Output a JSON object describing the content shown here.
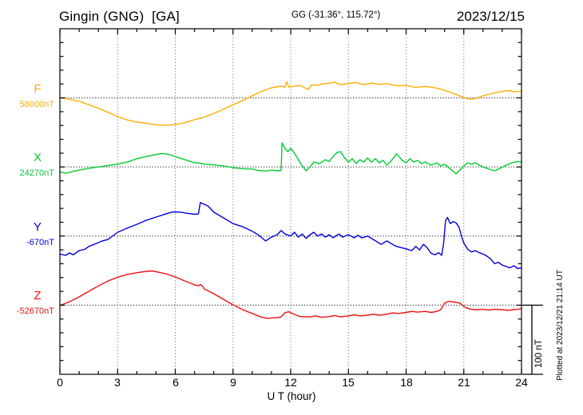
{
  "header": {
    "station_title": "Gingin (GNG)  [GA]",
    "coordinates": "GG (-31.36°, 115.72°)",
    "date": "2023/12/15"
  },
  "x_axis": {
    "label": "U T (hour)",
    "tick_labels": [
      "0",
      "3",
      "6",
      "9",
      "12",
      "15",
      "18",
      "21",
      "24"
    ],
    "hours_start": 0,
    "hours_end": 24
  },
  "scale_bar": {
    "label": "100 nT",
    "span_nT": 100
  },
  "annotations": {
    "plotted_at": "Plotted at 2023/12/21 21:14 UT"
  },
  "chart_data": {
    "type": "line",
    "title": "Magnetogram Gingin (GNG) [GA] 2023/12/15",
    "x_unit": "UT hour",
    "x_range": [
      0,
      24
    ],
    "grid": true,
    "x_grid_step_hours": 3,
    "y_tick_step_nT": 20,
    "scale_nT_per_division": 100,
    "series": [
      {
        "name": "F",
        "label": "F",
        "baseline_label": "58000nT",
        "baseline_nT": 58000,
        "color": "#FFAE00",
        "points_hour_deltaNT": [
          [
            0,
            0
          ],
          [
            0.5,
            -2
          ],
          [
            1,
            -5
          ],
          [
            1.5,
            -10
          ],
          [
            2,
            -15
          ],
          [
            2.5,
            -21
          ],
          [
            3,
            -27
          ],
          [
            3.5,
            -32
          ],
          [
            4,
            -35
          ],
          [
            4.5,
            -37
          ],
          [
            5,
            -39
          ],
          [
            5.5,
            -40
          ],
          [
            6,
            -38.5
          ],
          [
            6.5,
            -36
          ],
          [
            7,
            -31.5
          ],
          [
            7.3,
            -29.5
          ],
          [
            7.5,
            -28
          ],
          [
            8,
            -22.5
          ],
          [
            8.5,
            -16.5
          ],
          [
            9,
            -10
          ],
          [
            9.5,
            -4
          ],
          [
            10,
            3
          ],
          [
            10.5,
            9.5
          ],
          [
            11,
            14.5
          ],
          [
            11.5,
            17
          ],
          [
            11.7,
            15.5
          ],
          [
            11.8,
            23
          ],
          [
            11.9,
            15.5
          ],
          [
            12.2,
            17
          ],
          [
            12.5,
            18
          ],
          [
            12.9,
            12
          ],
          [
            13.1,
            19
          ],
          [
            13.4,
            18
          ],
          [
            13.7,
            20.5
          ],
          [
            14,
            21
          ],
          [
            14.3,
            22.5
          ],
          [
            14.6,
            19
          ],
          [
            15,
            21
          ],
          [
            15.4,
            22
          ],
          [
            15.8,
            19
          ],
          [
            16.2,
            21.5
          ],
          [
            16.6,
            19.5
          ],
          [
            17,
            20.5
          ],
          [
            17.5,
            17.5
          ],
          [
            18,
            18
          ],
          [
            18.5,
            15
          ],
          [
            19,
            16.5
          ],
          [
            19.5,
            14.5
          ],
          [
            20,
            11
          ],
          [
            20.5,
            6
          ],
          [
            21,
            0.5
          ],
          [
            21.3,
            -2
          ],
          [
            21.6,
            -1
          ],
          [
            22,
            3
          ],
          [
            22.5,
            6.5
          ],
          [
            23,
            9.5
          ],
          [
            23.3,
            10.5
          ],
          [
            23.6,
            9
          ],
          [
            24,
            9.5
          ]
        ]
      },
      {
        "name": "X",
        "label": "X",
        "baseline_label": "24270nT",
        "baseline_nT": 24270,
        "color": "#00CC33",
        "points_hour_deltaNT": [
          [
            0,
            -7
          ],
          [
            0.3,
            -9
          ],
          [
            0.6,
            -7
          ],
          [
            1,
            -4.5
          ],
          [
            1.5,
            -2
          ],
          [
            2,
            0
          ],
          [
            2.5,
            2
          ],
          [
            3,
            4
          ],
          [
            3.5,
            7
          ],
          [
            4,
            12
          ],
          [
            4.5,
            15
          ],
          [
            5,
            18
          ],
          [
            5.3,
            19.5
          ],
          [
            5.7,
            18
          ],
          [
            6,
            15
          ],
          [
            6.5,
            10.5
          ],
          [
            7,
            6
          ],
          [
            7.3,
            5.5
          ],
          [
            7.5,
            4
          ],
          [
            8,
            3
          ],
          [
            8.5,
            1.5
          ],
          [
            9,
            -1
          ],
          [
            9.5,
            -2.5
          ],
          [
            10,
            -3
          ],
          [
            10.3,
            -5
          ],
          [
            10.7,
            -6
          ],
          [
            11,
            -4.5
          ],
          [
            11.3,
            -5.5
          ],
          [
            11.5,
            -5
          ],
          [
            11.55,
            35
          ],
          [
            11.7,
            27
          ],
          [
            11.85,
            22
          ],
          [
            12,
            27
          ],
          [
            12.2,
            20
          ],
          [
            12.4,
            10.5
          ],
          [
            12.6,
            1.5
          ],
          [
            12.8,
            -5.5
          ],
          [
            13,
            0
          ],
          [
            13.2,
            7
          ],
          [
            13.5,
            5
          ],
          [
            13.8,
            10.5
          ],
          [
            14,
            8
          ],
          [
            14.2,
            15
          ],
          [
            14.4,
            21
          ],
          [
            14.6,
            22
          ],
          [
            14.8,
            13
          ],
          [
            15,
            7
          ],
          [
            15.2,
            12
          ],
          [
            15.4,
            5
          ],
          [
            15.6,
            10.5
          ],
          [
            15.8,
            7
          ],
          [
            16,
            13
          ],
          [
            16.2,
            7
          ],
          [
            16.4,
            12
          ],
          [
            16.6,
            6
          ],
          [
            16.8,
            9.5
          ],
          [
            17,
            2.5
          ],
          [
            17.2,
            8
          ],
          [
            17.5,
            19
          ],
          [
            17.8,
            9.5
          ],
          [
            18,
            6
          ],
          [
            18.2,
            12
          ],
          [
            18.4,
            7
          ],
          [
            18.6,
            9.5
          ],
          [
            18.8,
            5
          ],
          [
            19,
            7
          ],
          [
            19.3,
            2.5
          ],
          [
            19.6,
            6
          ],
          [
            19.8,
            1.5
          ],
          [
            20,
            4
          ],
          [
            20.3,
            -3
          ],
          [
            20.6,
            -10
          ],
          [
            20.8,
            -4.5
          ],
          [
            21,
            1.5
          ],
          [
            21.2,
            6
          ],
          [
            21.4,
            4
          ],
          [
            21.6,
            6
          ],
          [
            21.8,
            2.5
          ],
          [
            22,
            0
          ],
          [
            22.3,
            -3
          ],
          [
            22.6,
            -5.5
          ],
          [
            22.9,
            -2
          ],
          [
            23.2,
            2.5
          ],
          [
            23.5,
            6
          ],
          [
            23.8,
            8
          ],
          [
            24,
            7
          ]
        ]
      },
      {
        "name": "Y",
        "label": "Y",
        "baseline_label": "-670nT",
        "baseline_nT": -670,
        "color": "#0000DD",
        "points_hour_deltaNT": [
          [
            0,
            -26
          ],
          [
            0.3,
            -28
          ],
          [
            0.5,
            -24.5
          ],
          [
            0.7,
            -27
          ],
          [
            1,
            -21
          ],
          [
            1.3,
            -19
          ],
          [
            1.5,
            -15
          ],
          [
            2,
            -9.5
          ],
          [
            2.2,
            -7
          ],
          [
            2.5,
            -5
          ],
          [
            3,
            5.5
          ],
          [
            3.3,
            9
          ],
          [
            3.5,
            11.5
          ],
          [
            4,
            17
          ],
          [
            4.5,
            23
          ],
          [
            5,
            27.5
          ],
          [
            5.5,
            32
          ],
          [
            5.8,
            34.5
          ],
          [
            6,
            35
          ],
          [
            6.3,
            34.5
          ],
          [
            6.6,
            33
          ],
          [
            7,
            31.5
          ],
          [
            7.2,
            32
          ],
          [
            7.3,
            48.5
          ],
          [
            7.5,
            46
          ],
          [
            7.7,
            43.5
          ],
          [
            8,
            34.5
          ],
          [
            8.5,
            26.5
          ],
          [
            9,
            18
          ],
          [
            9.5,
            13.5
          ],
          [
            10,
            7
          ],
          [
            10.3,
            2
          ],
          [
            10.5,
            -2.5
          ],
          [
            10.7,
            -7
          ],
          [
            11,
            -1.5
          ],
          [
            11.3,
            2
          ],
          [
            11.5,
            8
          ],
          [
            11.7,
            3
          ],
          [
            12,
            0
          ],
          [
            12.2,
            5.5
          ],
          [
            12.4,
            -1.5
          ],
          [
            12.6,
            3
          ],
          [
            12.8,
            -3.5
          ],
          [
            13,
            2
          ],
          [
            13.2,
            5.5
          ],
          [
            13.4,
            0
          ],
          [
            13.6,
            3
          ],
          [
            13.8,
            -1.5
          ],
          [
            14,
            2
          ],
          [
            14.2,
            -2.5
          ],
          [
            14.5,
            3
          ],
          [
            14.7,
            -1.5
          ],
          [
            15,
            2
          ],
          [
            15.3,
            -2.5
          ],
          [
            15.5,
            1
          ],
          [
            15.7,
            -2.5
          ],
          [
            16,
            0
          ],
          [
            16.3,
            -5
          ],
          [
            16.5,
            -8.5
          ],
          [
            16.7,
            -12
          ],
          [
            17,
            -7
          ],
          [
            17.3,
            -12
          ],
          [
            17.5,
            -15
          ],
          [
            18,
            -18.5
          ],
          [
            18.3,
            -21
          ],
          [
            18.5,
            -15
          ],
          [
            18.7,
            -20
          ],
          [
            18.9,
            -12
          ],
          [
            19.1,
            -17
          ],
          [
            19.3,
            -25
          ],
          [
            19.5,
            -27
          ],
          [
            19.7,
            -24
          ],
          [
            19.85,
            -28
          ],
          [
            19.95,
            -10
          ],
          [
            20.05,
            22
          ],
          [
            20.15,
            27
          ],
          [
            20.3,
            18
          ],
          [
            20.45,
            21
          ],
          [
            20.6,
            19
          ],
          [
            20.75,
            13
          ],
          [
            20.9,
            -2
          ],
          [
            21,
            -10
          ],
          [
            21.2,
            -19
          ],
          [
            21.4,
            -23
          ],
          [
            21.6,
            -21
          ],
          [
            21.8,
            -24
          ],
          [
            22,
            -26
          ],
          [
            22.2,
            -29
          ],
          [
            22.4,
            -33
          ],
          [
            22.6,
            -40
          ],
          [
            22.8,
            -38
          ],
          [
            23,
            -42
          ],
          [
            23.2,
            -44
          ],
          [
            23.4,
            -46
          ],
          [
            23.6,
            -43
          ],
          [
            23.8,
            -47
          ],
          [
            24,
            -46
          ]
        ]
      },
      {
        "name": "Z",
        "label": "Z",
        "baseline_label": "-52670nT",
        "baseline_nT": -52670,
        "color": "#EE1111",
        "points_hour_deltaNT": [
          [
            0,
            -0.5
          ],
          [
            0.5,
            5
          ],
          [
            1,
            12
          ],
          [
            1.5,
            20
          ],
          [
            2,
            28
          ],
          [
            2.5,
            35
          ],
          [
            3,
            40.5
          ],
          [
            3.5,
            44.5
          ],
          [
            4,
            47
          ],
          [
            4.5,
            49
          ],
          [
            4.8,
            49.5
          ],
          [
            5,
            48.5
          ],
          [
            5.5,
            45.5
          ],
          [
            6,
            41
          ],
          [
            6.5,
            35
          ],
          [
            7,
            29.5
          ],
          [
            7.2,
            28
          ],
          [
            7.3,
            30
          ],
          [
            7.45,
            26.5
          ],
          [
            7.5,
            23.5
          ],
          [
            8,
            16.5
          ],
          [
            8.5,
            8.5
          ],
          [
            9,
            0.5
          ],
          [
            9.5,
            -6.5
          ],
          [
            10,
            -12
          ],
          [
            10.5,
            -17.5
          ],
          [
            10.8,
            -19
          ],
          [
            11,
            -18.5
          ],
          [
            11.3,
            -18
          ],
          [
            11.5,
            -17
          ],
          [
            11.7,
            -11
          ],
          [
            11.9,
            -9.5
          ],
          [
            12,
            -11
          ],
          [
            12.3,
            -14.5
          ],
          [
            12.5,
            -16.5
          ],
          [
            13,
            -17
          ],
          [
            13.3,
            -15.5
          ],
          [
            13.6,
            -17.5
          ],
          [
            14,
            -16.5
          ],
          [
            14.3,
            -15
          ],
          [
            14.6,
            -17
          ],
          [
            15,
            -15.5
          ],
          [
            15.3,
            -14
          ],
          [
            15.6,
            -15.5
          ],
          [
            16,
            -14.5
          ],
          [
            16.3,
            -13
          ],
          [
            16.6,
            -14.5
          ],
          [
            17,
            -13
          ],
          [
            17.3,
            -11
          ],
          [
            17.6,
            -12
          ],
          [
            18,
            -10.5
          ],
          [
            18.3,
            -9
          ],
          [
            18.6,
            -10
          ],
          [
            19,
            -9
          ],
          [
            19.3,
            -10.5
          ],
          [
            19.6,
            -9
          ],
          [
            19.8,
            -6.5
          ],
          [
            20,
            3
          ],
          [
            20.2,
            5.5
          ],
          [
            20.5,
            4.5
          ],
          [
            20.8,
            3
          ],
          [
            21,
            -2
          ],
          [
            21.3,
            -5.5
          ],
          [
            21.6,
            -6.5
          ],
          [
            22,
            -6
          ],
          [
            22.3,
            -7
          ],
          [
            22.6,
            -6
          ],
          [
            23,
            -6.5
          ],
          [
            23.3,
            -7.5
          ],
          [
            23.6,
            -6.5
          ],
          [
            23.8,
            -6
          ],
          [
            24,
            -5
          ]
        ]
      }
    ]
  }
}
